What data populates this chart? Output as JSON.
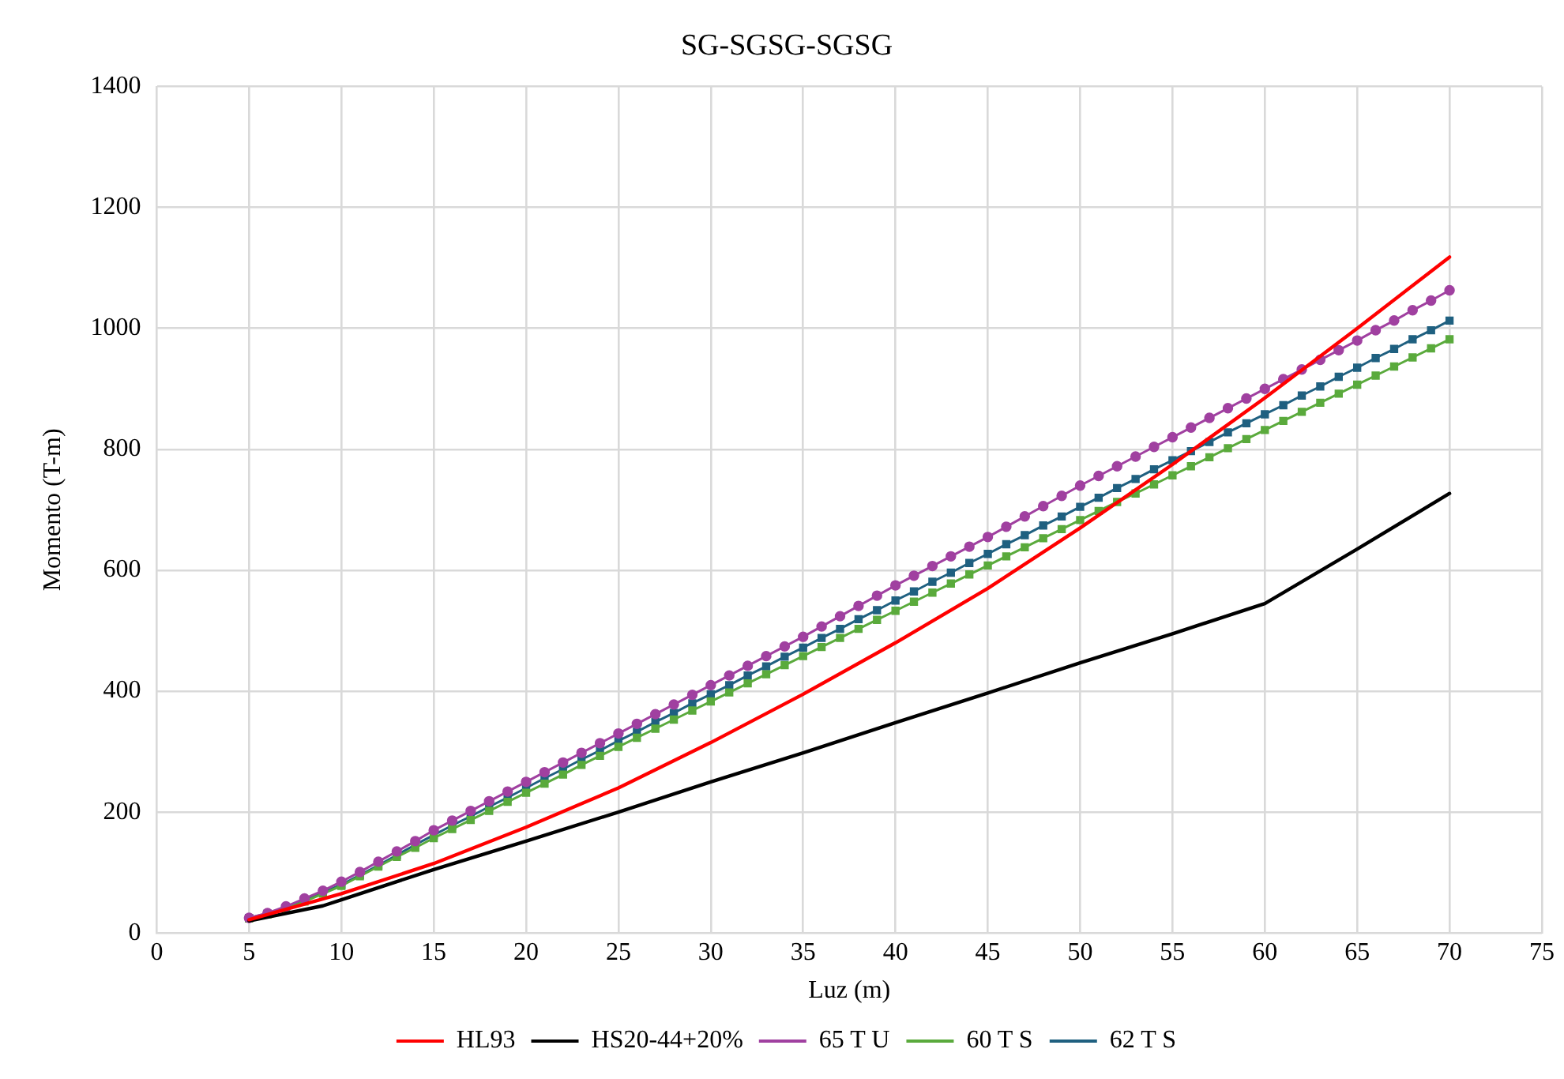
{
  "chart_data": {
    "type": "line",
    "title": "SG-SGSG-SGSG",
    "xlabel": "Luz (m)",
    "ylabel": "Momento (T-m)",
    "xlim": [
      0,
      75
    ],
    "xticks": [
      0,
      5,
      10,
      15,
      20,
      25,
      30,
      35,
      40,
      45,
      50,
      55,
      60,
      65,
      70,
      75
    ],
    "ylim": [
      0,
      1400
    ],
    "yticks": [
      0,
      200,
      400,
      600,
      800,
      1000,
      1200,
      1400
    ],
    "grid": true,
    "legend": "bottom",
    "series": [
      {
        "name": "HL93",
        "color": "#ff0000",
        "marker": "none",
        "x": [
          5,
          10,
          15,
          20,
          25,
          30,
          35,
          40,
          45,
          50,
          55,
          60,
          65,
          70
        ],
        "values": [
          22,
          65,
          115,
          175,
          240,
          315,
          395,
          480,
          570,
          670,
          775,
          885,
          1000,
          1118
        ]
      },
      {
        "name": "HS20-44+20%",
        "color": "#000000",
        "marker": "none",
        "x": [
          5,
          9,
          10,
          15,
          20,
          25,
          30,
          35,
          40,
          45,
          50,
          55,
          58,
          60,
          65,
          70
        ],
        "values": [
          20,
          45,
          55,
          105,
          152,
          200,
          250,
          298,
          348,
          397,
          447,
          495,
          525,
          545,
          635,
          727
        ]
      },
      {
        "name": "65 T U",
        "color": "#a040a0",
        "marker": "circle",
        "x": [
          5,
          6,
          7,
          8,
          9,
          10,
          11,
          12,
          13,
          14,
          15,
          16,
          17,
          18,
          19,
          20,
          21,
          22,
          23,
          24,
          25,
          26,
          27,
          28,
          29,
          30,
          31,
          32,
          33,
          34,
          35,
          36,
          37,
          38,
          39,
          40,
          41,
          42,
          43,
          44,
          45,
          46,
          47,
          48,
          49,
          50,
          51,
          52,
          53,
          54,
          55,
          56,
          57,
          58,
          59,
          60,
          61,
          62,
          63,
          64,
          65,
          66,
          67,
          68,
          69,
          70
        ],
        "values": [
          25,
          33,
          44,
          57,
          70,
          85,
          101,
          118,
          135,
          152,
          170,
          186,
          202,
          218,
          234,
          250,
          266,
          282,
          298,
          314,
          330,
          346,
          362,
          378,
          394,
          410,
          426,
          442,
          458,
          474,
          490,
          507,
          524,
          541,
          558,
          575,
          591,
          607,
          623,
          639,
          655,
          672,
          689,
          706,
          723,
          740,
          756,
          772,
          788,
          804,
          820,
          836,
          852,
          868,
          884,
          900,
          916,
          932,
          948,
          964,
          980,
          997,
          1013,
          1030,
          1046,
          1063
        ]
      },
      {
        "name": "60 T S",
        "color": "#5aaa3c",
        "marker": "square",
        "x": [
          5,
          6,
          7,
          8,
          9,
          10,
          11,
          12,
          13,
          14,
          15,
          16,
          17,
          18,
          19,
          20,
          21,
          22,
          23,
          24,
          25,
          26,
          27,
          28,
          29,
          30,
          31,
          32,
          33,
          34,
          35,
          36,
          37,
          38,
          39,
          40,
          41,
          42,
          43,
          44,
          45,
          46,
          47,
          48,
          49,
          50,
          51,
          52,
          53,
          54,
          55,
          56,
          57,
          58,
          59,
          60,
          61,
          62,
          63,
          64,
          65,
          66,
          67,
          68,
          69,
          70
        ],
        "values": [
          24,
          31,
          41,
          52,
          65,
          78,
          94,
          110,
          126,
          141,
          157,
          172,
          187,
          202,
          217,
          232,
          247,
          262,
          278,
          293,
          308,
          323,
          338,
          353,
          368,
          383,
          398,
          413,
          428,
          443,
          458,
          473,
          488,
          503,
          518,
          533,
          548,
          563,
          578,
          593,
          608,
          623,
          638,
          653,
          668,
          683,
          698,
          713,
          727,
          742,
          757,
          772,
          787,
          802,
          817,
          832,
          847,
          862,
          877,
          892,
          907,
          922,
          937,
          952,
          967,
          982
        ]
      },
      {
        "name": "62 T S",
        "color": "#1f6080",
        "marker": "square",
        "x": [
          5,
          6,
          7,
          8,
          9,
          10,
          11,
          12,
          13,
          14,
          15,
          16,
          17,
          18,
          19,
          20,
          21,
          22,
          23,
          24,
          25,
          26,
          27,
          28,
          29,
          30,
          31,
          32,
          33,
          34,
          35,
          36,
          37,
          38,
          39,
          40,
          41,
          42,
          43,
          44,
          45,
          46,
          47,
          48,
          49,
          50,
          51,
          52,
          53,
          54,
          55,
          56,
          57,
          58,
          59,
          60,
          61,
          62,
          63,
          64,
          65,
          66,
          67,
          68,
          69,
          70
        ],
        "values": [
          25,
          32,
          42,
          54,
          67,
          80,
          96,
          112,
          129,
          146,
          162,
          178,
          193,
          209,
          224,
          240,
          256,
          271,
          287,
          302,
          318,
          333,
          349,
          364,
          380,
          395,
          410,
          426,
          441,
          457,
          472,
          488,
          503,
          519,
          534,
          550,
          565,
          581,
          596,
          612,
          627,
          643,
          658,
          674,
          689,
          705,
          720,
          736,
          751,
          767,
          782,
          797,
          812,
          828,
          843,
          858,
          873,
          889,
          904,
          920,
          935,
          951,
          966,
          982,
          997,
          1013
        ]
      }
    ]
  }
}
